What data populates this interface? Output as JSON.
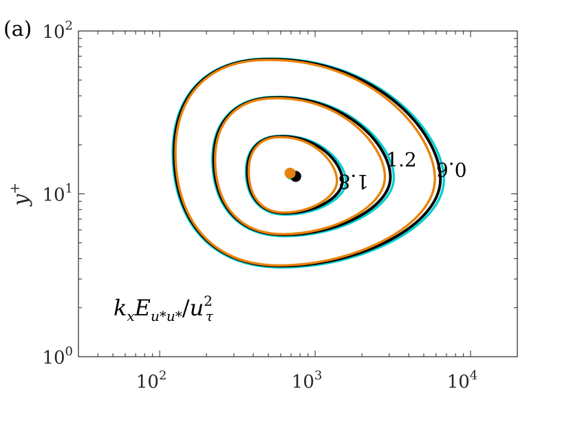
{
  "panel_label": "(a)",
  "chart_data": {
    "type": "contour",
    "xscale": "log",
    "yscale": "log",
    "xlim": [
      30,
      20000
    ],
    "ylim": [
      1,
      100
    ],
    "x_ticks": [
      {
        "value": 100,
        "base": "10",
        "exp": "2"
      },
      {
        "value": 1000,
        "base": "10",
        "exp": "3"
      },
      {
        "value": 10000,
        "base": "10",
        "exp": "4"
      }
    ],
    "y_ticks": [
      {
        "value": 1,
        "base": "10",
        "exp": "0"
      },
      {
        "value": 10,
        "base": "10",
        "exp": "1"
      },
      {
        "value": 100,
        "base": "10",
        "exp": "2"
      }
    ],
    "ylabel": {
      "base": "y",
      "sup": "+"
    },
    "annotation": {
      "k": "k",
      "k_sub": "x",
      "E": "E",
      "E_sub": "u*u*",
      "slash": "/",
      "u": "u",
      "u_sup": "2",
      "u_sub": "τ"
    },
    "grid": false,
    "contour_levels": [
      {
        "level": 0.6,
        "label": "0.6",
        "x_min": 125,
        "x_max": 6400,
        "y_min": 3.6,
        "y_max": 67
      },
      {
        "level": 1.2,
        "label": "1.2",
        "x_min": 225,
        "x_max": 3050,
        "y_min": 5.6,
        "y_max": 39
      },
      {
        "level": 1.8,
        "label": "1.8",
        "x_min": 370,
        "x_max": 1500,
        "y_min": 7.6,
        "y_max": 22.5
      }
    ],
    "series": [
      {
        "color": "#00CED1",
        "peak": {
          "x": 700,
          "y": 13.2
        }
      },
      {
        "color": "#000000",
        "peak": {
          "x": 750,
          "y": 12.8
        }
      },
      {
        "color": "#E8820C",
        "peak": {
          "x": 690,
          "y": 13.4
        }
      }
    ]
  },
  "colors": {
    "axis": "#262626",
    "cyan": "#00CED1",
    "black": "#000000",
    "orange": "#E8820C"
  }
}
